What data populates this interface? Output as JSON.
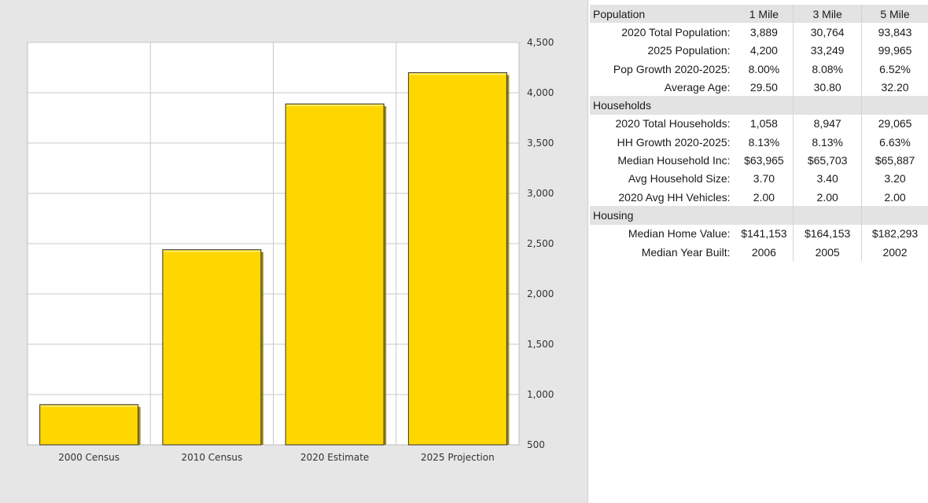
{
  "chart_data": {
    "type": "bar",
    "categories": [
      "2000 Census",
      "2010 Census",
      "2020 Estimate",
      "2025 Projection"
    ],
    "values": [
      900,
      2440,
      3889,
      4200
    ],
    "ylim": [
      500,
      4500
    ],
    "yticks": [
      "4,500",
      "4,000",
      "3,500",
      "3,000",
      "2,500",
      "2,000",
      "1,500",
      "1,000",
      "500"
    ],
    "ytick_values": [
      4500,
      4000,
      3500,
      3000,
      2500,
      2000,
      1500,
      1000,
      500
    ],
    "y_axis_side": "right",
    "grid": true,
    "bar_color": "#ffd700",
    "bar_edge_color": "#333333"
  },
  "table": {
    "sections": [
      {
        "name": "Population",
        "headers": [
          "1 Mile",
          "3 Mile",
          "5 Mile"
        ],
        "rows": [
          {
            "label": "2020 Total Population:",
            "values": [
              "3,889",
              "30,764",
              "93,843"
            ]
          },
          {
            "label": "2025 Population:",
            "values": [
              "4,200",
              "33,249",
              "99,965"
            ]
          },
          {
            "label": "Pop Growth 2020-2025:",
            "values": [
              "8.00%",
              "8.08%",
              "6.52%"
            ]
          },
          {
            "label": "Average Age:",
            "values": [
              "29.50",
              "30.80",
              "32.20"
            ]
          }
        ]
      },
      {
        "name": "Households",
        "headers": [
          "",
          "",
          ""
        ],
        "rows": [
          {
            "label": "2020 Total Households:",
            "values": [
              "1,058",
              "8,947",
              "29,065"
            ]
          },
          {
            "label": "HH Growth 2020-2025:",
            "values": [
              "8.13%",
              "8.13%",
              "6.63%"
            ]
          },
          {
            "label": "Median Household Inc:",
            "values": [
              "$63,965",
              "$65,703",
              "$65,887"
            ]
          },
          {
            "label": "Avg Household Size:",
            "values": [
              "3.70",
              "3.40",
              "3.20"
            ]
          },
          {
            "label": "2020 Avg HH Vehicles:",
            "values": [
              "2.00",
              "2.00",
              "2.00"
            ]
          }
        ]
      },
      {
        "name": "Housing",
        "headers": [
          "",
          "",
          ""
        ],
        "rows": [
          {
            "label": "Median Home Value:",
            "values": [
              "$141,153",
              "$164,153",
              "$182,293"
            ]
          },
          {
            "label": "Median Year Built:",
            "values": [
              "2006",
              "2005",
              "2002"
            ]
          }
        ]
      }
    ]
  }
}
